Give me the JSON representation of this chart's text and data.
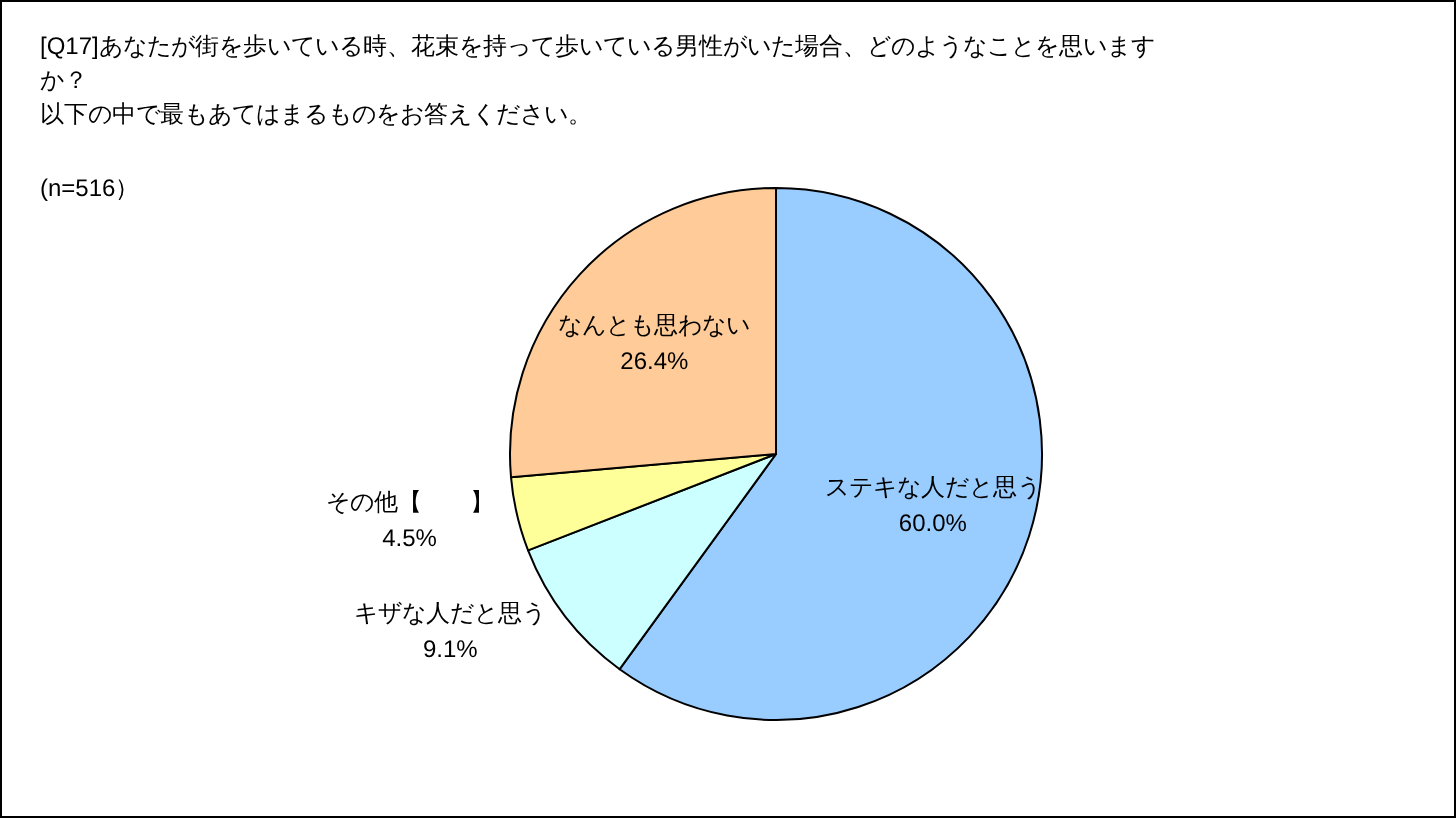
{
  "chart_data": {
    "type": "pie",
    "title": "[Q17]あなたが街を歩いている時、花束を持って歩いている男性がいた場合、どのようなことを思いますか？",
    "subtitle": "以下の中で最もあてはまるものをお答えください。",
    "annotations": [
      "(n=516）"
    ],
    "categories": [
      "ステキな人だと思う",
      "キザな人だと思う",
      "その他【　　】",
      "なんとも思わない"
    ],
    "values": [
      60.0,
      9.1,
      4.5,
      26.4
    ],
    "colors": [
      "#99ccff",
      "#ccffff",
      "#ffff99",
      "#ffcc99"
    ],
    "value_labels": [
      "60.0%",
      "9.1%",
      "4.5%",
      "26.4%"
    ]
  }
}
